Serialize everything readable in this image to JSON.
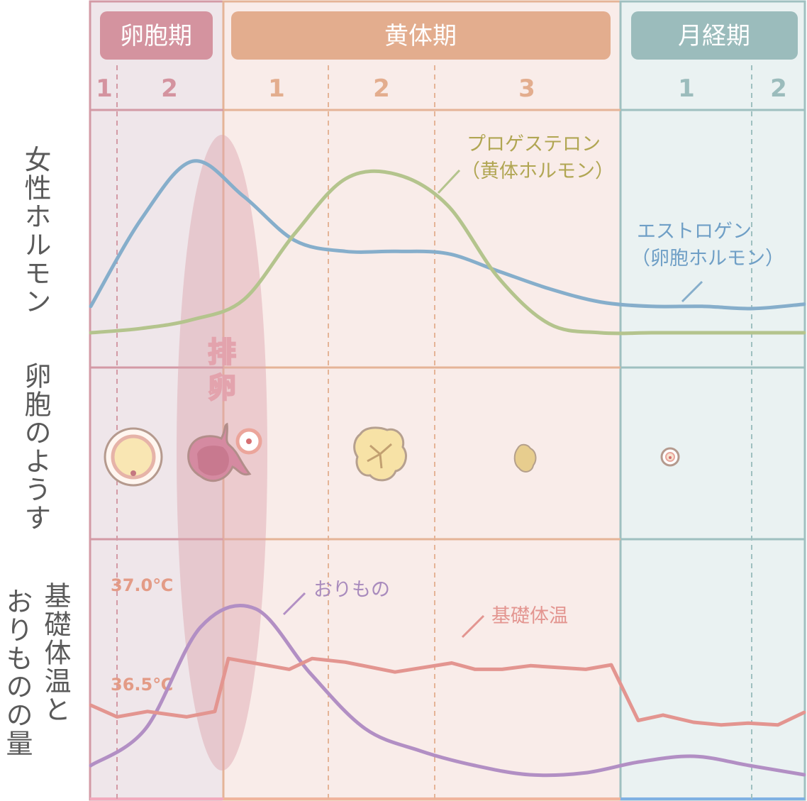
{
  "side_labels": {
    "hormone": "女性ホルモン",
    "follicle": "卵胞のようす",
    "bbt_a": "基礎体温と",
    "bbt_b": "おりものの量"
  },
  "phases": [
    {
      "name": "卵胞期",
      "color": "#d4939f",
      "subs": [
        "1",
        "2"
      ]
    },
    {
      "name": "黄体期",
      "color": "#e3ad8e",
      "subs": [
        "1",
        "2",
        "3"
      ]
    },
    {
      "name": "月経期",
      "color": "#9bbcbc",
      "subs": [
        "1",
        "2"
      ]
    }
  ],
  "ovulation_label": "排卵",
  "chart_data": {
    "type": "line",
    "panels": [
      {
        "panel": "hormone",
        "series": [
          {
            "name": "エストロゲン",
            "name_sub": "（卵胞ホルモン）",
            "color": "#86aecb",
            "values": [
              0.22,
              0.62,
              0.88,
              0.72,
              0.52,
              0.47,
              0.47,
              0.46,
              0.38,
              0.3,
              0.24,
              0.22,
              0.22,
              0.21,
              0.23
            ]
          },
          {
            "name": "プロゲステロン",
            "name_sub": "（黄体ホルモン）",
            "color": "#b4c48d",
            "values": [
              0.1,
              0.12,
              0.16,
              0.25,
              0.55,
              0.8,
              0.82,
              0.68,
              0.35,
              0.14,
              0.1,
              0.1,
              0.1,
              0.1,
              0.1
            ]
          }
        ]
      },
      {
        "panel": "bbt",
        "temp_labels": [
          "37.0℃",
          "36.5℃"
        ],
        "series": [
          {
            "name": "基礎体温",
            "color": "#e39590",
            "values": [
              36.35,
              36.25,
              36.3,
              36.25,
              36.3,
              36.85,
              36.75,
              36.85,
              36.7,
              36.8,
              36.7,
              36.75,
              36.7,
              36.75,
              36.2,
              36.3,
              36.2,
              36.15,
              36.2,
              36.15,
              36.35
            ]
          },
          {
            "name": "おりもの",
            "color": "#b28fc4",
            "values": [
              0.1,
              0.3,
              0.85,
              0.95,
              0.6,
              0.3,
              0.18,
              0.1,
              0.05,
              0.06,
              0.12,
              0.15,
              0.1,
              0.05
            ]
          }
        ]
      }
    ]
  }
}
